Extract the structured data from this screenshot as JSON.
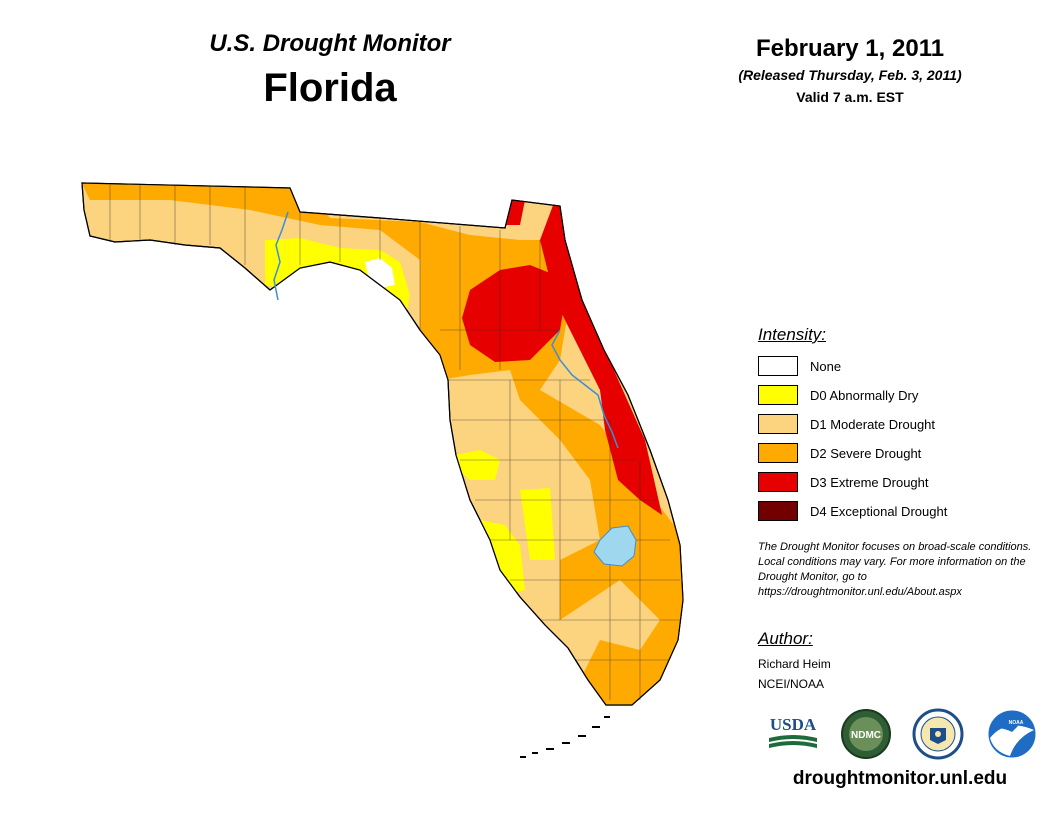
{
  "header": {
    "monitor_title": "U.S. Drought Monitor",
    "state": "Florida",
    "date": "February 1, 2011",
    "released": "(Released Thursday, Feb. 3, 2011)",
    "valid": "Valid 7 a.m. EST"
  },
  "legend": {
    "title": "Intensity:",
    "items": [
      {
        "label": "None",
        "color": "#ffffff"
      },
      {
        "label": "D0 Abnormally Dry",
        "color": "#ffff00"
      },
      {
        "label": "D1 Moderate Drought",
        "color": "#fcd37f"
      },
      {
        "label": "D2 Severe Drought",
        "color": "#ffaa00"
      },
      {
        "label": "D3 Extreme Drought",
        "color": "#e60000"
      },
      {
        "label": "D4 Exceptional Drought",
        "color": "#730000"
      }
    ]
  },
  "note": "The Drought Monitor focuses on broad-scale conditions. Local conditions may vary. For more information on the Drought Monitor, go to https://droughtmonitor.unl.edu/About.aspx",
  "author": {
    "title": "Author:",
    "name": "Richard Heim",
    "org": "NCEI/NOAA"
  },
  "logos": {
    "usda": "USDA",
    "ndmc": "NDMC",
    "noaa": "NOAA"
  },
  "url": "droughtmonitor.unl.edu",
  "colors": {
    "water": "#9fd7ef",
    "river": "#3a8fd8",
    "outline": "#000000"
  }
}
